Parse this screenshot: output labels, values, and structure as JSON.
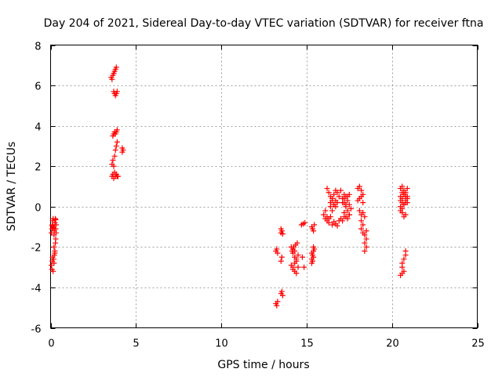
{
  "chart_data": {
    "type": "scatter",
    "title": "Day 204 of 2021, Sidereal Day-to-day VTEC variation (SDTVAR) for receiver ftna",
    "xlabel": "GPS time / hours",
    "ylabel": "SDTVAR / TECUs",
    "xlim": [
      0,
      25
    ],
    "ylim": [
      -6,
      8
    ],
    "x_ticks": [
      "0",
      "5",
      "10",
      "15",
      "20",
      "25"
    ],
    "y_ticks": [
      "-6",
      "-4",
      "-2",
      "0",
      "2",
      "4",
      "6",
      "8"
    ],
    "x_tick_values": [
      0,
      5,
      10,
      15,
      20,
      25
    ],
    "y_tick_values": [
      -6,
      -4,
      -2,
      0,
      2,
      4,
      6,
      8
    ],
    "grid": true,
    "marker": "plus",
    "color": "#ff0000",
    "series": [
      {
        "x": [
          0.05,
          0.08,
          0.1,
          0.12,
          0.15,
          0.18,
          0.2,
          0.22,
          0.25,
          0.28,
          0.3,
          0.32,
          0.05,
          0.08,
          0.1,
          0.12,
          0.15,
          0.18,
          0.2,
          0.22,
          0.25,
          0.28,
          0.3,
          0.1,
          0.15,
          0.2,
          0.25,
          0.3,
          0.32,
          3.55,
          3.6,
          3.65,
          3.7,
          3.75,
          3.8,
          3.85,
          3.7,
          3.75,
          3.8,
          3.85,
          3.9,
          3.6,
          3.65,
          3.7,
          3.75,
          3.8,
          3.85,
          3.9,
          3.6,
          3.65,
          3.7,
          3.75,
          3.8,
          3.85,
          3.9,
          3.95,
          3.65,
          3.7,
          3.75,
          3.8,
          3.85,
          3.9,
          4.2,
          4.25,
          4.2,
          13.2,
          13.25,
          13.3,
          13.2,
          13.25,
          13.3,
          13.5,
          13.55,
          13.5,
          13.6,
          13.5,
          13.55,
          13.6,
          13.5,
          13.55,
          14.1,
          14.2,
          14.3,
          14.4,
          14.5,
          14.15,
          14.25,
          14.35,
          14.45,
          14.2,
          14.3,
          14.4,
          14.5,
          14.2,
          14.3,
          14.4,
          14.1,
          14.2,
          14.3,
          14.7,
          14.8,
          14.9,
          14.75,
          14.85,
          15.3,
          15.35,
          15.4,
          15.45,
          15.3,
          15.35,
          15.4,
          15.45,
          15.3,
          15.35,
          15.4,
          15.3,
          15.4,
          16.0,
          16.1,
          16.2,
          16.3,
          16.4,
          16.5,
          16.6,
          16.7,
          16.8,
          16.9,
          16.2,
          16.3,
          16.4,
          16.5,
          16.6,
          16.7,
          16.8,
          16.1,
          16.2,
          16.3,
          16.4,
          16.5,
          16.6,
          16.7,
          16.8,
          16.9,
          17.0,
          16.4,
          16.5,
          16.6,
          16.7,
          17.1,
          17.2,
          17.3,
          17.4,
          17.5,
          17.2,
          17.3,
          17.4,
          17.5,
          17.6,
          17.2,
          17.3,
          17.4,
          17.5,
          17.1,
          17.2,
          17.3,
          17.4,
          17.5,
          17.0,
          17.1,
          17.2,
          18.0,
          18.1,
          18.2,
          18.3,
          18.0,
          18.1,
          18.2,
          18.3,
          18.1,
          18.2,
          18.3,
          18.4,
          18.2,
          18.3,
          18.4,
          18.5,
          18.4,
          18.5,
          18.4,
          18.5,
          18.2,
          18.3,
          20.5,
          20.6,
          20.7,
          20.8,
          20.9,
          20.5,
          20.6,
          20.7,
          20.8,
          20.9,
          20.5,
          20.6,
          20.7,
          20.8,
          20.9,
          20.5,
          20.6,
          20.7,
          20.8,
          20.6,
          20.7,
          20.8,
          20.5,
          20.6,
          20.7,
          20.6,
          20.7,
          20.8,
          20.6,
          20.7,
          20.8,
          20.5,
          20.6,
          20.9
        ],
        "y": [
          -1.3,
          -1.1,
          -0.9,
          -0.7,
          -0.6,
          -1.0,
          -1.4,
          -1.2,
          -0.8,
          -0.6,
          -1.1,
          -1.3,
          -2.9,
          -3.1,
          -2.7,
          -2.5,
          -3.2,
          -2.6,
          -2.8,
          -2.4,
          -2.2,
          -1.8,
          -1.6,
          -0.95,
          -1.05,
          -2.0,
          -2.3,
          -0.65,
          -0.9,
          6.4,
          6.3,
          6.5,
          6.6,
          6.7,
          6.8,
          6.9,
          5.7,
          5.6,
          5.5,
          5.6,
          5.7,
          2.1,
          2.3,
          2.0,
          2.5,
          2.8,
          3.0,
          3.2,
          1.5,
          1.6,
          1.4,
          1.7,
          1.5,
          1.6,
          1.5,
          1.5,
          3.5,
          3.6,
          3.7,
          3.6,
          3.7,
          3.8,
          2.9,
          2.8,
          2.7,
          -4.8,
          -4.9,
          -4.7,
          -2.2,
          -2.1,
          -2.3,
          -1.3,
          -1.2,
          -1.1,
          -1.35,
          -4.3,
          -4.2,
          -4.4,
          -2.7,
          -2.5,
          -2.9,
          -3.0,
          -2.8,
          -2.6,
          -2.4,
          -2.2,
          -2.0,
          -1.9,
          -1.8,
          -3.1,
          -3.2,
          -3.3,
          -3.0,
          -2.3,
          -2.5,
          -2.7,
          -2.0,
          -2.1,
          -2.2,
          -0.9,
          -0.85,
          -0.8,
          -2.5,
          -3.0,
          -1.0,
          -1.1,
          -1.2,
          -0.9,
          -2.3,
          -2.4,
          -2.2,
          -2.1,
          -2.6,
          -2.7,
          -2.5,
          -2.8,
          -2.0,
          -0.4,
          -0.2,
          -0.5,
          -0.6,
          0.2,
          0.4,
          0.6,
          0.8,
          0.7,
          0.5,
          0.9,
          0.7,
          0.5,
          0.3,
          0.1,
          0.0,
          0.2,
          -0.6,
          -0.7,
          -0.8,
          -0.5,
          -0.9,
          -0.75,
          -0.85,
          -0.95,
          -0.7,
          -0.6,
          0.0,
          -0.2,
          0.1,
          0.3,
          0.4,
          0.2,
          0.0,
          -0.2,
          -0.4,
          0.6,
          0.5,
          0.3,
          0.1,
          -0.1,
          -0.3,
          -0.5,
          -0.6,
          -0.4,
          0.2,
          0.4,
          0.1,
          0.5,
          0.6,
          0.8,
          -0.7,
          -0.5,
          0.9,
          1.0,
          0.8,
          0.6,
          0.3,
          0.4,
          0.5,
          0.2,
          -0.2,
          -0.4,
          -0.3,
          -0.5,
          -1.1,
          -1.3,
          -1.4,
          -1.2,
          -1.8,
          -2.0,
          -2.2,
          -1.6,
          -0.7,
          -0.9,
          0.9,
          1.0,
          0.8,
          0.7,
          0.9,
          0.5,
          0.4,
          0.6,
          0.3,
          0.2,
          0.0,
          -0.1,
          0.1,
          0.2,
          0.4,
          -0.2,
          -0.3,
          -0.5,
          -0.4,
          0.7,
          0.6,
          0.5,
          0.3,
          0.2,
          0.1,
          -2.8,
          -2.6,
          -2.4,
          -3.0,
          -3.2,
          -2.2,
          -3.4,
          -3.3,
          0.5
        ]
      }
    ]
  }
}
